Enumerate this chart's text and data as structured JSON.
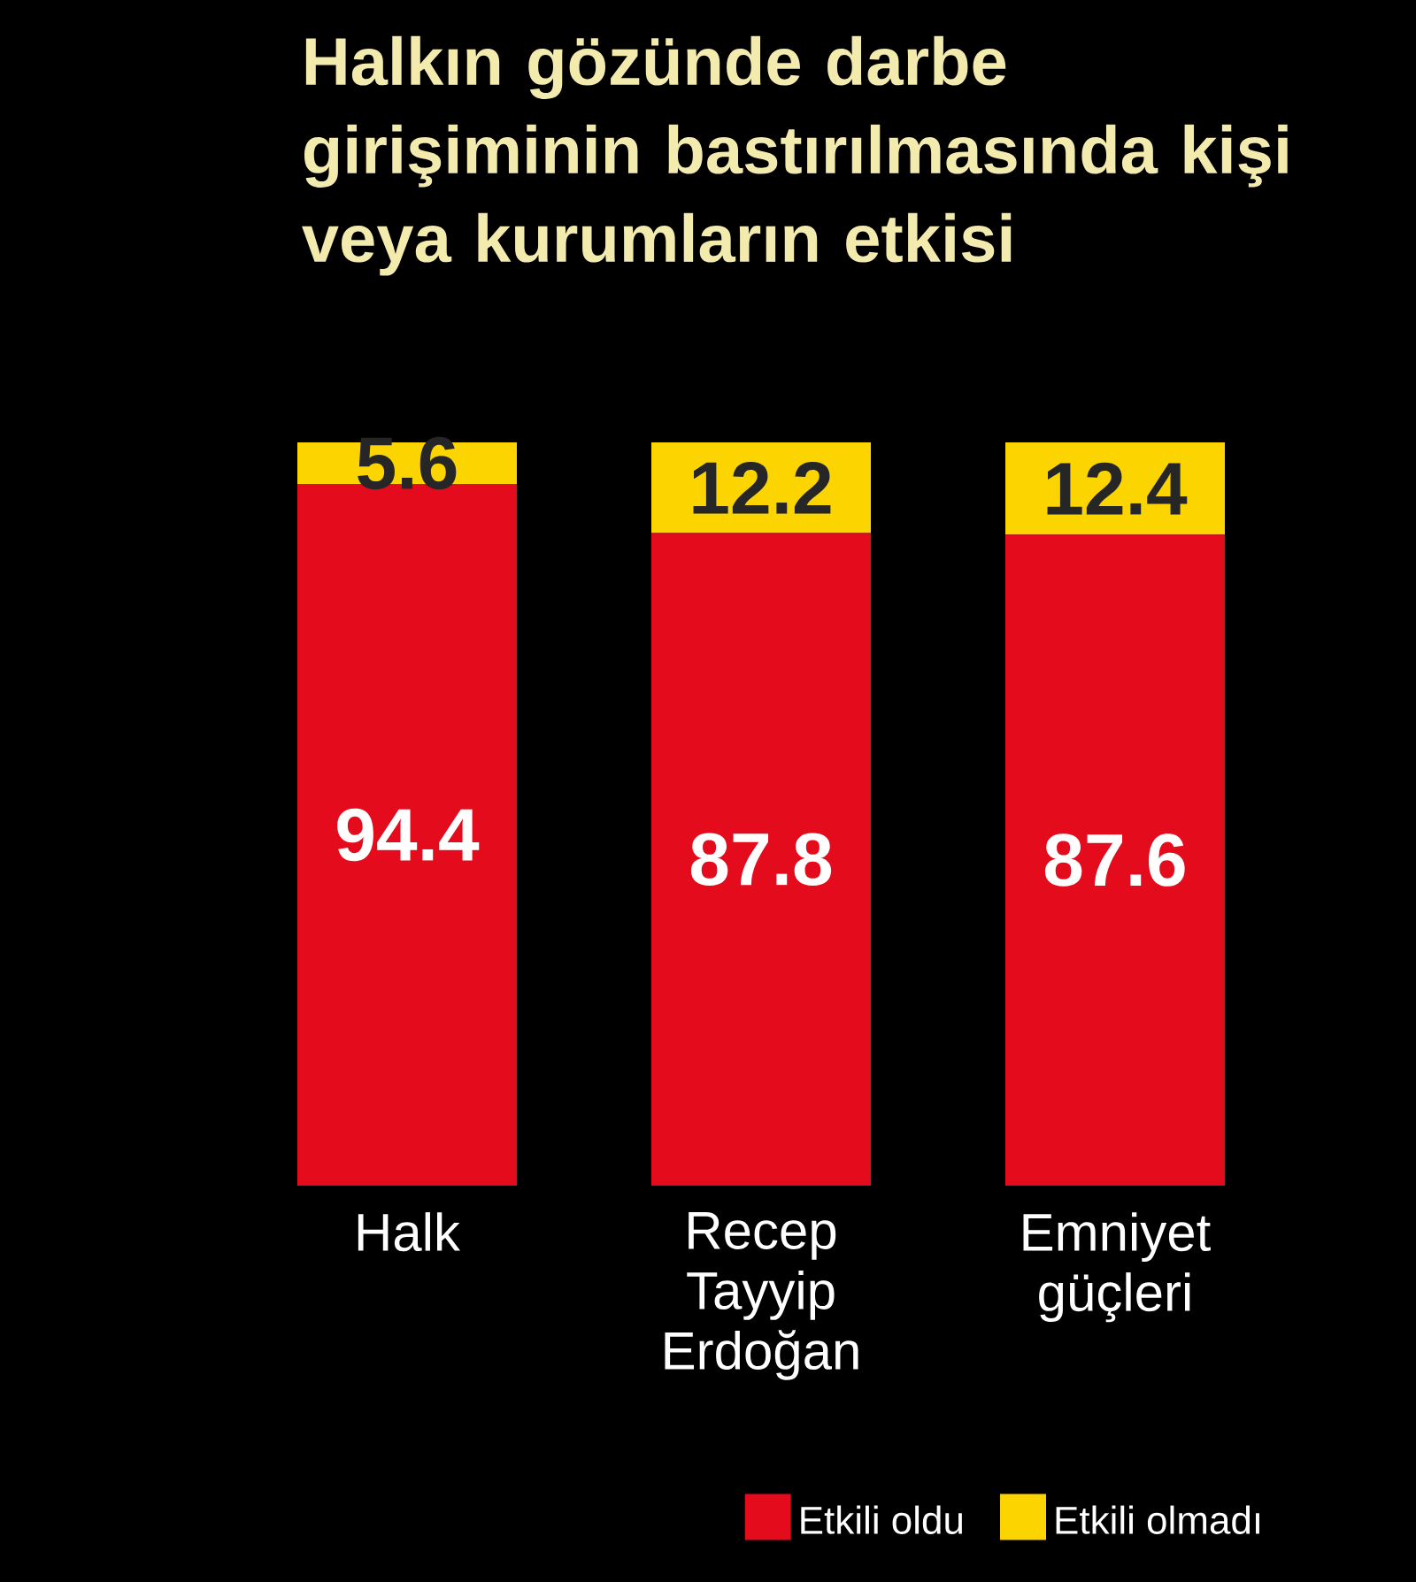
{
  "chart_data": {
    "type": "bar",
    "stacked": true,
    "title": "Halkın gözünde darbe girişiminin bastırılmasında kişi veya kurumların etkisi",
    "categories": [
      "Halk",
      "Recep Tayyip Erdoğan",
      "Emniyet güçleri"
    ],
    "series": [
      {
        "name": "Etkili oldu",
        "color": "#e30b1c",
        "values": [
          94.4,
          87.8,
          87.6
        ]
      },
      {
        "name": "Etkili olmadı",
        "color": "#fcd400",
        "values": [
          5.6,
          12.2,
          12.4
        ]
      }
    ],
    "data_labels": true,
    "legend": "bottom right"
  }
}
